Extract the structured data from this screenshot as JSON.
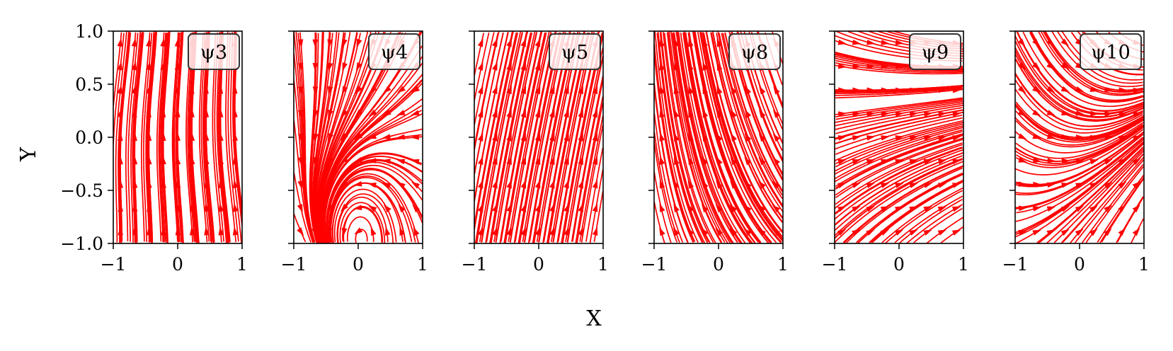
{
  "chart_data": {
    "type": "streamplot",
    "color": "#ff0000",
    "xlabel": "X",
    "ylabel": "Y",
    "xlim": [
      -1,
      1
    ],
    "ylim": [
      -1,
      1
    ],
    "xticks": [
      -1,
      0,
      1
    ],
    "yticks": [
      -1.0,
      -0.5,
      0.0,
      0.5,
      1.0
    ],
    "xtick_labels": [
      "−1",
      "0",
      "1"
    ],
    "ytick_labels": [
      "−1.0",
      "−0.5",
      "0.0",
      "0.5",
      "1.0"
    ],
    "grid": false,
    "legend_placement": "top-right",
    "shared_y": true,
    "panels": [
      {
        "label": "ψ3",
        "field": "psi3"
      },
      {
        "label": "ψ4",
        "field": "psi4"
      },
      {
        "label": "ψ5",
        "field": "psi5"
      },
      {
        "label": "ψ8",
        "field": "psi8"
      },
      {
        "label": "ψ9",
        "field": "psi9"
      },
      {
        "label": "ψ10",
        "field": "psi10"
      }
    ]
  }
}
